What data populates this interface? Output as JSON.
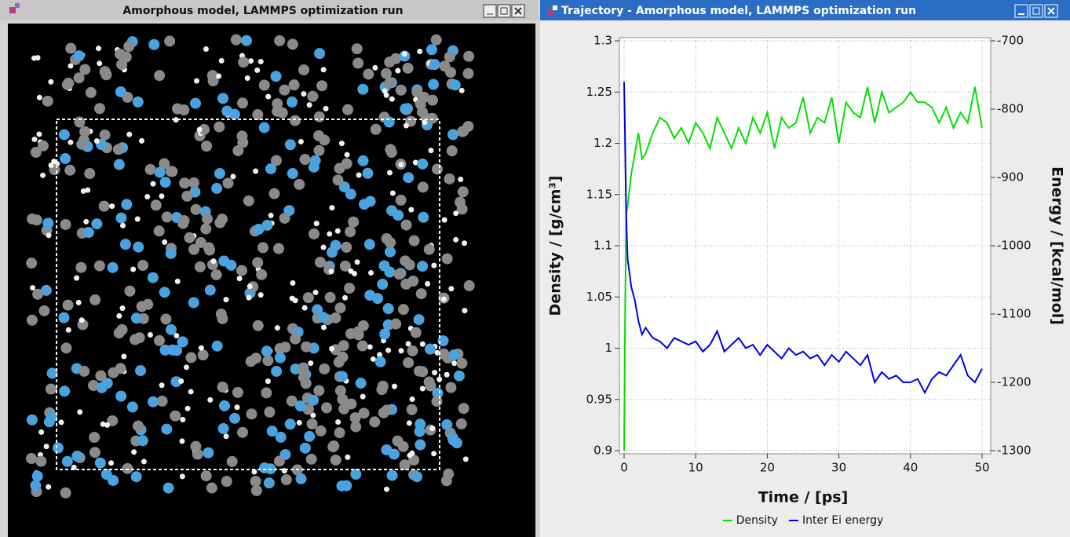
{
  "windows": [
    {
      "title": "Amorphous model, LAMMPS optimization run"
    },
    {
      "title": "Trajectory - Amorphous model, LAMMPS optimization run"
    }
  ],
  "chart_data": {
    "type": "line",
    "xlabel": "Time / [ps]",
    "ylabel": "Density / [g/cm³]",
    "y2label": "Energy / [kcal/mol]",
    "x": [
      0,
      0.1,
      0.3,
      0.5,
      1,
      1.5,
      2,
      2.5,
      3,
      4,
      5,
      6,
      7,
      8,
      9,
      10,
      11,
      12,
      13,
      14,
      15,
      16,
      17,
      18,
      19,
      20,
      21,
      22,
      23,
      24,
      25,
      26,
      27,
      28,
      29,
      30,
      31,
      32,
      33,
      34,
      35,
      36,
      37,
      38,
      39,
      40,
      41,
      42,
      43,
      44,
      45,
      46,
      47,
      48,
      49,
      50
    ],
    "series": [
      {
        "name": "Density",
        "color": "#00e000",
        "axis": "y",
        "values": [
          0.9,
          1.0,
          1.13,
          1.14,
          1.17,
          1.19,
          1.21,
          1.185,
          1.19,
          1.21,
          1.225,
          1.22,
          1.205,
          1.215,
          1.2,
          1.22,
          1.21,
          1.195,
          1.225,
          1.21,
          1.195,
          1.215,
          1.2,
          1.225,
          1.21,
          1.23,
          1.195,
          1.225,
          1.215,
          1.22,
          1.245,
          1.21,
          1.225,
          1.22,
          1.245,
          1.2,
          1.24,
          1.23,
          1.225,
          1.255,
          1.22,
          1.25,
          1.23,
          1.235,
          1.24,
          1.25,
          1.24,
          1.24,
          1.235,
          1.22,
          1.235,
          1.215,
          1.23,
          1.22,
          1.255,
          1.215
        ]
      },
      {
        "name": "Inter Ei energy",
        "color": "#0000e0",
        "axis": "y2",
        "values": [
          -760,
          -820,
          -960,
          -1020,
          -1060,
          -1080,
          -1110,
          -1130,
          -1120,
          -1135,
          -1140,
          -1150,
          -1135,
          -1140,
          -1145,
          -1140,
          -1155,
          -1145,
          -1125,
          -1155,
          -1145,
          -1135,
          -1150,
          -1145,
          -1160,
          -1145,
          -1155,
          -1165,
          -1150,
          -1160,
          -1155,
          -1165,
          -1160,
          -1175,
          -1160,
          -1170,
          -1155,
          -1165,
          -1175,
          -1160,
          -1200,
          -1185,
          -1195,
          -1190,
          -1200,
          -1200,
          -1195,
          -1215,
          -1195,
          -1185,
          -1190,
          -1175,
          -1160,
          -1190,
          -1200,
          -1180
        ]
      }
    ],
    "xlim": [
      0,
      50
    ],
    "xticks": [
      0,
      10,
      20,
      30,
      40,
      50
    ],
    "ylim": [
      0.9,
      1.3
    ],
    "yticks": [
      0.9,
      0.95,
      1,
      1.05,
      1.1,
      1.15,
      1.2,
      1.25,
      1.3
    ],
    "y2lim": [
      -1300,
      -700
    ],
    "y2ticks": [
      -1300,
      -1200,
      -1100,
      -1000,
      -900,
      -800,
      -700
    ],
    "grid": true,
    "legend": "bottom"
  }
}
